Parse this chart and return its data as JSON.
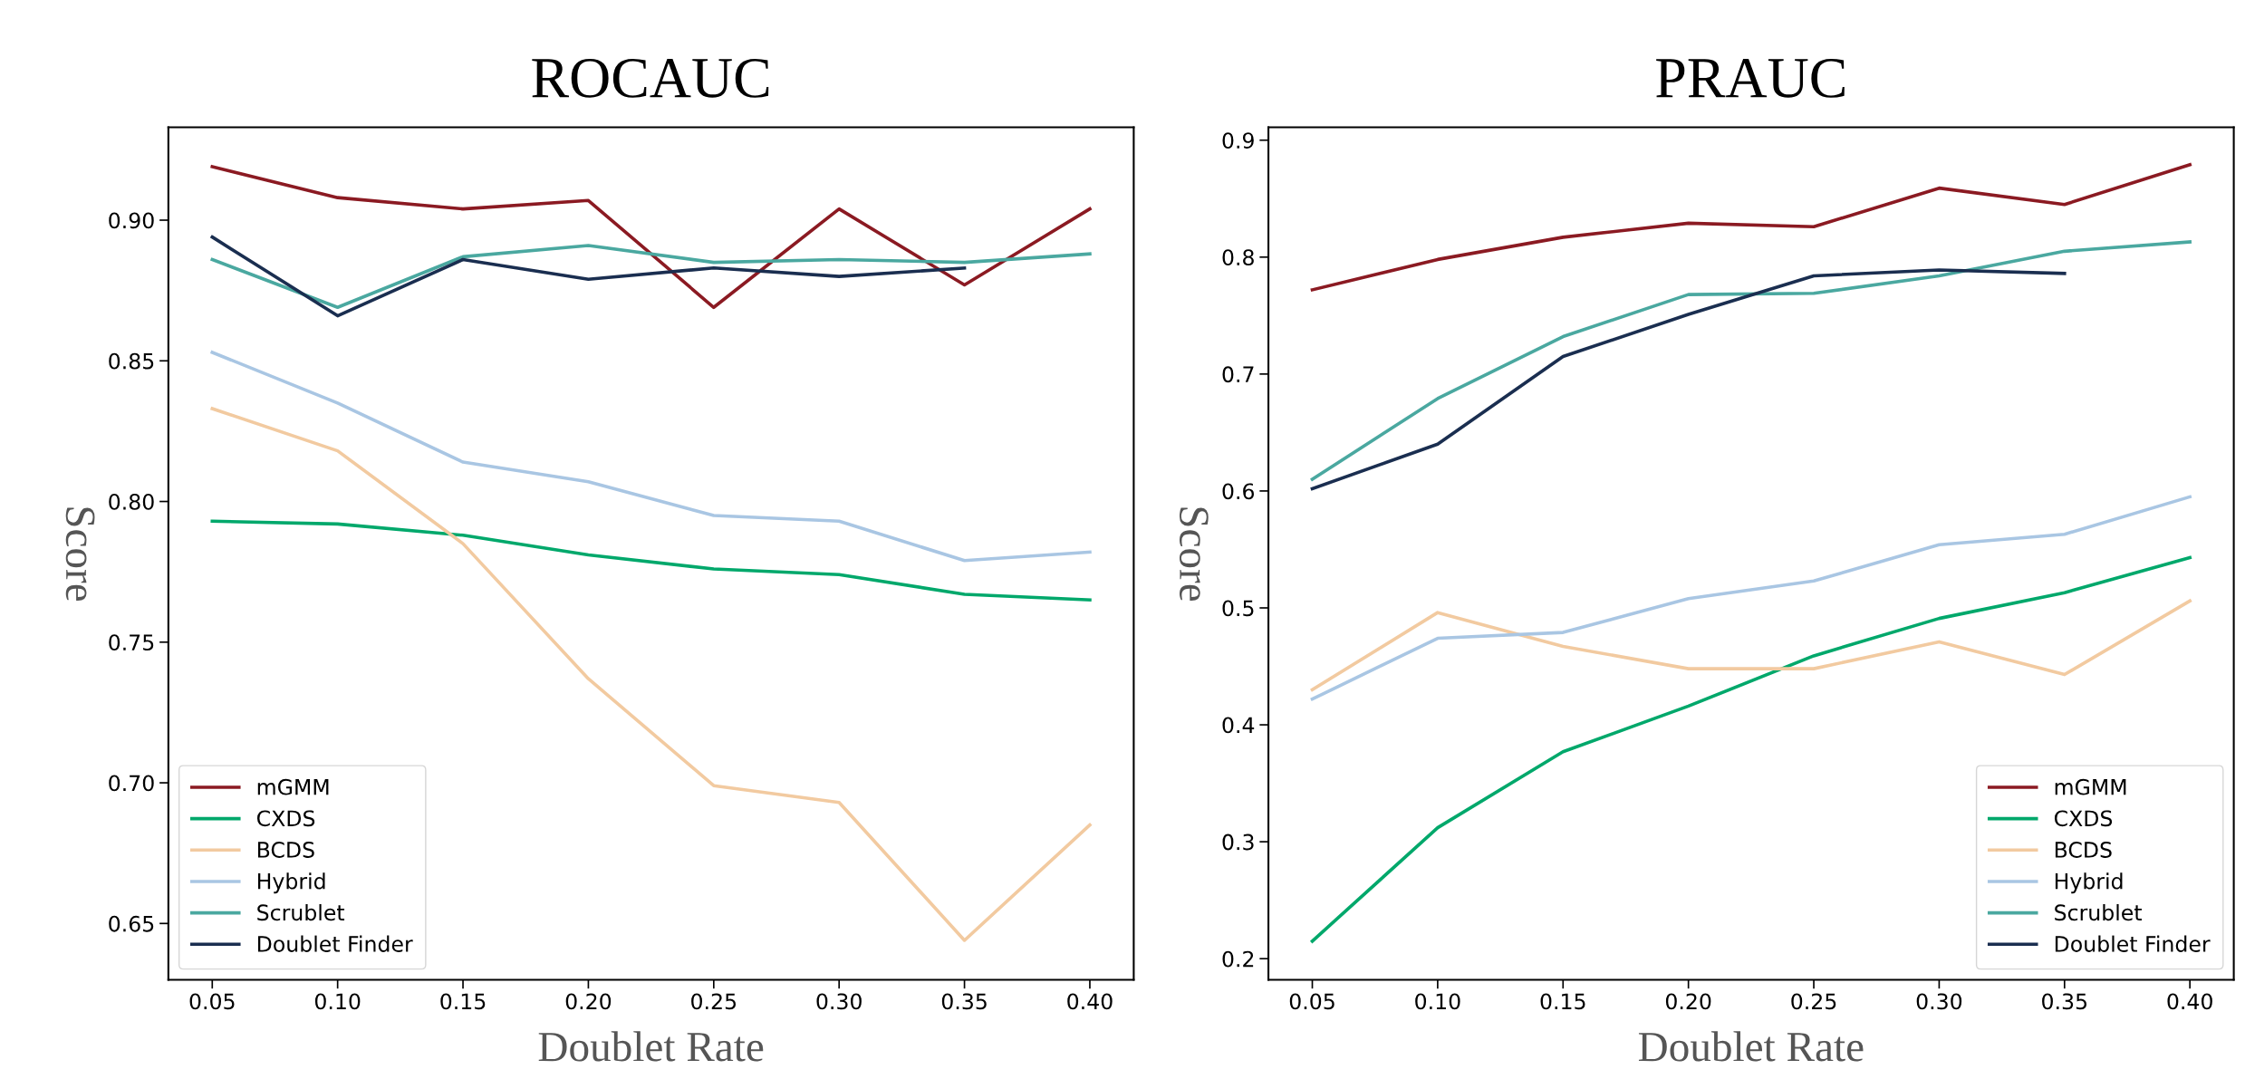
{
  "chart_data": [
    {
      "type": "line",
      "title": "ROCAUC",
      "xlabel": "Doublet Rate",
      "ylabel": "Score",
      "x": [
        0.05,
        0.1,
        0.15,
        0.2,
        0.25,
        0.3,
        0.35,
        0.4
      ],
      "xlim": [
        0.0325,
        0.4175
      ],
      "xticks": [
        {
          "value": 0.05,
          "label": "0.05"
        },
        {
          "value": 0.1,
          "label": "0.10"
        },
        0.15,
        {
          "value": 0.2,
          "label": "0.20"
        },
        0.25,
        {
          "value": 0.3,
          "label": "0.30"
        },
        0.35,
        {
          "value": 0.4,
          "label": "0.40"
        }
      ],
      "ylim": [
        0.63,
        0.933
      ],
      "yticks": [
        0.65,
        {
          "value": 0.7,
          "label": "0.70"
        },
        0.75,
        {
          "value": 0.8,
          "label": "0.80"
        },
        0.85,
        {
          "value": 0.9,
          "label": "0.90"
        }
      ],
      "grid": false,
      "legend": "bottom left",
      "marker": "none",
      "line_style": "solid",
      "series": [
        {
          "name": "mGMM",
          "color": "#8b1a22",
          "values": [
            0.919,
            0.908,
            0.904,
            0.907,
            0.869,
            0.904,
            0.877,
            0.904
          ]
        },
        {
          "name": "CXDS",
          "color": "#00a86b",
          "values": [
            0.793,
            0.792,
            0.788,
            0.781,
            0.776,
            0.774,
            0.767,
            0.765
          ]
        },
        {
          "name": "BCDS",
          "color": "#f2caa0",
          "values": [
            0.833,
            0.818,
            0.785,
            0.737,
            0.699,
            0.693,
            0.644,
            0.685
          ]
        },
        {
          "name": "Hybrid",
          "color": "#a9c6e3",
          "values": [
            0.853,
            0.835,
            0.814,
            0.807,
            0.795,
            0.793,
            0.779,
            0.782
          ]
        },
        {
          "name": "Scrublet",
          "color": "#4aa8a0",
          "values": [
            0.886,
            0.869,
            0.887,
            0.891,
            0.885,
            0.886,
            0.885,
            0.888
          ]
        },
        {
          "name": "Doublet Finder",
          "color": "#1a2e50",
          "values": [
            0.894,
            0.866,
            0.886,
            0.879,
            0.883,
            0.88,
            0.883,
            null
          ]
        }
      ]
    },
    {
      "type": "line",
      "title": "PRAUC",
      "xlabel": "Doublet Rate",
      "ylabel": "Score",
      "x": [
        0.05,
        0.1,
        0.15,
        0.2,
        0.25,
        0.3,
        0.35,
        0.4
      ],
      "xlim": [
        0.0325,
        0.4175
      ],
      "xticks": [
        {
          "value": 0.05,
          "label": "0.05"
        },
        {
          "value": 0.1,
          "label": "0.10"
        },
        0.15,
        {
          "value": 0.2,
          "label": "0.20"
        },
        0.25,
        {
          "value": 0.3,
          "label": "0.30"
        },
        0.35,
        {
          "value": 0.4,
          "label": "0.40"
        }
      ],
      "ylim": [
        0.182,
        0.911
      ],
      "yticks": [
        0.2,
        0.3,
        0.4,
        0.5,
        0.6,
        0.7,
        0.8,
        0.9
      ],
      "grid": false,
      "legend": "bottom right",
      "marker": "none",
      "line_style": "solid",
      "series": [
        {
          "name": "mGMM",
          "color": "#8b1a22",
          "values": [
            0.772,
            0.798,
            0.817,
            0.829,
            0.826,
            0.859,
            0.845,
            0.879
          ]
        },
        {
          "name": "CXDS",
          "color": "#00a86b",
          "values": [
            0.215,
            0.312,
            0.377,
            0.416,
            0.459,
            0.491,
            0.513,
            0.543
          ]
        },
        {
          "name": "BCDS",
          "color": "#f2caa0",
          "values": [
            0.43,
            0.496,
            0.467,
            0.448,
            0.448,
            0.471,
            0.443,
            0.506
          ]
        },
        {
          "name": "Hybrid",
          "color": "#a9c6e3",
          "values": [
            0.422,
            0.474,
            0.479,
            0.508,
            0.523,
            0.554,
            0.563,
            0.595
          ]
        },
        {
          "name": "Scrublet",
          "color": "#4aa8a0",
          "values": [
            0.61,
            0.679,
            0.732,
            0.768,
            0.769,
            0.784,
            0.805,
            0.813
          ]
        },
        {
          "name": "Doublet Finder",
          "color": "#1a2e50",
          "values": [
            0.602,
            0.64,
            0.715,
            0.751,
            0.784,
            0.789,
            0.786,
            null
          ]
        }
      ]
    }
  ]
}
